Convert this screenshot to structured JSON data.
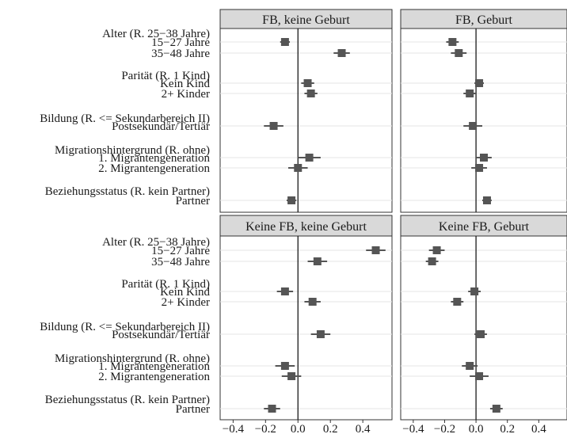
{
  "chart_data": {
    "type": "coefficient-plot",
    "xlim": [
      -0.48,
      0.58
    ],
    "x_ticks": [
      "−0.4",
      "−0.2",
      "0.0",
      "0.2",
      "0.4"
    ],
    "x_tick_values": [
      -0.4,
      -0.2,
      0.0,
      0.2,
      0.4
    ],
    "grid": true,
    "row_labels": [
      "Alter (R. 25−38 Jahre)",
      "15−27 Jahre",
      "35−48 Jahre",
      "Parität (R. 1 Kind)",
      "Kein Kind",
      "2+ Kinder",
      "Bildung (R. <= Sekundarbereich II)",
      "Postsekundär/Tertiär",
      "Migrationshintergrund (R. ohne)",
      "1. Migrantengeneration",
      "2. Migrantengeneration",
      "Beziehungsstatus (R. kein Partner)",
      "Partner"
    ],
    "terms": [
      "15−27 Jahre",
      "35−48 Jahre",
      "Kein Kind",
      "2+ Kinder",
      "Postsekundär/Tertiär",
      "1. Migrantengeneration",
      "2. Migrantengeneration",
      "Partner"
    ],
    "panels": [
      {
        "title": "FB, keine Geburt",
        "estimates": [
          -0.08,
          0.27,
          0.06,
          0.08,
          -0.15,
          0.07,
          0.0,
          -0.04
        ],
        "ci_low": [
          -0.11,
          0.22,
          0.02,
          0.04,
          -0.21,
          0.0,
          -0.06,
          -0.07
        ],
        "ci_high": [
          -0.05,
          0.32,
          0.1,
          0.12,
          -0.09,
          0.14,
          0.06,
          -0.01
        ]
      },
      {
        "title": "FB, Geburt",
        "estimates": [
          -0.15,
          -0.11,
          0.02,
          -0.04,
          -0.02,
          0.05,
          0.02,
          0.07
        ],
        "ci_low": [
          -0.19,
          -0.16,
          -0.01,
          -0.08,
          -0.08,
          0.0,
          -0.03,
          0.04
        ],
        "ci_high": [
          -0.11,
          -0.06,
          0.05,
          0.0,
          0.04,
          0.1,
          0.07,
          0.1
        ]
      },
      {
        "title": "Keine FB, keine Geburt",
        "estimates": [
          0.48,
          0.12,
          -0.08,
          0.09,
          0.14,
          -0.08,
          -0.04,
          -0.16
        ],
        "ci_low": [
          0.42,
          0.06,
          -0.13,
          0.04,
          0.08,
          -0.14,
          -0.1,
          -0.21
        ],
        "ci_high": [
          0.54,
          0.18,
          -0.03,
          0.14,
          0.2,
          -0.02,
          0.02,
          -0.11
        ]
      },
      {
        "title": "Keine FB, Geburt",
        "estimates": [
          -0.25,
          -0.28,
          -0.01,
          -0.12,
          0.03,
          -0.04,
          0.02,
          0.13
        ],
        "ci_low": [
          -0.3,
          -0.32,
          -0.05,
          -0.16,
          -0.01,
          -0.09,
          -0.04,
          0.09
        ],
        "ci_high": [
          -0.2,
          -0.24,
          0.03,
          -0.08,
          0.07,
          0.01,
          0.08,
          0.17
        ]
      }
    ]
  }
}
